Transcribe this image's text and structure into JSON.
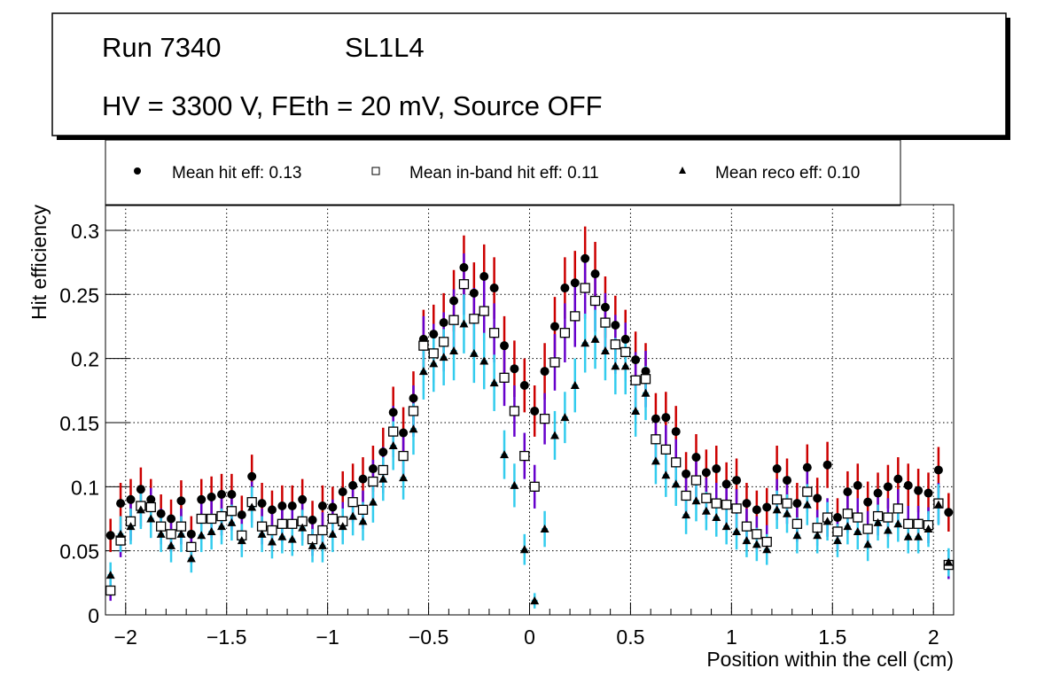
{
  "title_box": {
    "run": "Run 7340",
    "layer": "SL1L4",
    "conditions": "HV = 3300 V, FEth = 20 mV, Source OFF"
  },
  "legend": [
    {
      "marker": "filled-circle",
      "label": "Mean hit  eff: 0.13"
    },
    {
      "marker": "open-square",
      "label": "Mean in-band hit eff: 0.11"
    },
    {
      "marker": "filled-triangle",
      "label": "Mean reco eff: 0.10"
    }
  ],
  "chart_data": {
    "type": "scatter",
    "title": "Run 7340 SL1L4 — HV = 3300 V, FEth = 20 mV, Source OFF",
    "xlabel": "Position within the cell (cm)",
    "ylabel": "Hit efficiency",
    "xlim": [
      -2.1,
      2.1
    ],
    "ylim": [
      0,
      0.32
    ],
    "xticks": [
      -2,
      -1.5,
      -1,
      -0.5,
      0,
      0.5,
      1,
      1.5,
      2
    ],
    "xtick_labels": [
      "−2",
      "−1.5",
      "−1",
      "−0.5",
      "0",
      "0.5",
      "1",
      "1.5",
      "2"
    ],
    "yticks": [
      0,
      0.05,
      0.1,
      0.15,
      0.2,
      0.25,
      0.3
    ],
    "ytick_labels": [
      "0",
      "0.05",
      "0.1",
      "0.15",
      "0.2",
      "0.25",
      "0.3"
    ],
    "grid": true,
    "legend_position": "top",
    "bin_width": 0.05,
    "x_start": -2.075,
    "series": [
      {
        "name": "Mean hit  eff: 0.13",
        "marker": "filled-circle",
        "error_color": "#cc0000",
        "values": [
          0.062,
          0.087,
          0.09,
          0.098,
          0.09,
          0.079,
          0.075,
          0.089,
          0.063,
          0.09,
          0.092,
          0.094,
          0.094,
          0.078,
          0.108,
          0.087,
          0.082,
          0.085,
          0.085,
          0.09,
          0.074,
          0.085,
          0.084,
          0.096,
          0.101,
          0.106,
          0.114,
          0.127,
          0.158,
          0.142,
          0.169,
          0.215,
          0.219,
          0.228,
          0.245,
          0.271,
          0.251,
          0.264,
          0.255,
          0.21,
          0.192,
          0.179,
          0.159,
          0.19,
          0.225,
          0.255,
          0.259,
          0.278,
          0.266,
          0.24,
          0.226,
          0.215,
          0.199,
          0.19,
          0.153,
          0.154,
          0.143,
          0.11,
          0.123,
          0.111,
          0.114,
          0.102,
          0.105,
          0.087,
          0.082,
          0.084,
          0.114,
          0.105,
          0.087,
          0.115,
          0.091,
          0.117,
          0.076,
          0.096,
          0.101,
          0.088,
          0.095,
          0.1,
          0.106,
          0.101,
          0.097,
          0.095,
          0.113,
          0.08
        ],
        "errors": [
          0.013,
          0.016,
          0.016,
          0.017,
          0.016,
          0.015,
          0.015,
          0.016,
          0.014,
          0.016,
          0.016,
          0.016,
          0.016,
          0.015,
          0.017,
          0.016,
          0.015,
          0.016,
          0.016,
          0.016,
          0.015,
          0.016,
          0.016,
          0.016,
          0.017,
          0.017,
          0.018,
          0.019,
          0.02,
          0.02,
          0.021,
          0.023,
          0.023,
          0.023,
          0.024,
          0.025,
          0.024,
          0.025,
          0.024,
          0.023,
          0.022,
          0.021,
          0.02,
          0.022,
          0.023,
          0.024,
          0.025,
          0.025,
          0.025,
          0.024,
          0.023,
          0.023,
          0.022,
          0.022,
          0.02,
          0.02,
          0.02,
          0.017,
          0.018,
          0.018,
          0.018,
          0.017,
          0.017,
          0.016,
          0.015,
          0.015,
          0.018,
          0.017,
          0.016,
          0.018,
          0.016,
          0.018,
          0.015,
          0.016,
          0.017,
          0.016,
          0.016,
          0.017,
          0.017,
          0.017,
          0.017,
          0.016,
          0.018,
          0.015
        ]
      },
      {
        "name": "Mean in-band hit eff: 0.11",
        "marker": "open-square",
        "error_color": "#6600cc",
        "values": [
          0.019,
          0.058,
          0.073,
          0.085,
          0.084,
          0.069,
          0.063,
          0.069,
          0.053,
          0.075,
          0.075,
          0.077,
          0.081,
          0.062,
          0.088,
          0.069,
          0.066,
          0.071,
          0.071,
          0.073,
          0.059,
          0.066,
          0.075,
          0.073,
          0.088,
          0.082,
          0.104,
          0.113,
          0.143,
          0.124,
          0.159,
          0.21,
          0.204,
          0.213,
          0.23,
          0.258,
          0.231,
          0.237,
          0.22,
          0.185,
          0.159,
          0.124,
          0.1,
          0.153,
          0.197,
          0.22,
          0.233,
          0.255,
          0.245,
          0.228,
          0.211,
          0.205,
          0.183,
          0.184,
          0.137,
          0.129,
          0.119,
          0.093,
          0.105,
          0.091,
          0.087,
          0.086,
          0.083,
          0.069,
          0.063,
          0.057,
          0.09,
          0.087,
          0.071,
          0.096,
          0.068,
          0.076,
          0.065,
          0.079,
          0.076,
          0.067,
          0.077,
          0.076,
          0.083,
          0.071,
          0.071,
          0.07,
          0.087,
          0.039
        ],
        "errors": [
          0.008,
          0.013,
          0.015,
          0.016,
          0.015,
          0.014,
          0.014,
          0.014,
          0.013,
          0.015,
          0.015,
          0.015,
          0.015,
          0.013,
          0.016,
          0.014,
          0.014,
          0.014,
          0.014,
          0.015,
          0.013,
          0.014,
          0.015,
          0.015,
          0.016,
          0.015,
          0.017,
          0.018,
          0.02,
          0.018,
          0.02,
          0.023,
          0.023,
          0.023,
          0.024,
          0.024,
          0.024,
          0.024,
          0.023,
          0.022,
          0.02,
          0.018,
          0.017,
          0.02,
          0.022,
          0.023,
          0.024,
          0.024,
          0.024,
          0.023,
          0.023,
          0.023,
          0.022,
          0.022,
          0.019,
          0.019,
          0.018,
          0.016,
          0.017,
          0.016,
          0.016,
          0.016,
          0.015,
          0.014,
          0.014,
          0.013,
          0.016,
          0.016,
          0.014,
          0.016,
          0.014,
          0.015,
          0.014,
          0.015,
          0.015,
          0.014,
          0.015,
          0.015,
          0.015,
          0.014,
          0.014,
          0.014,
          0.016,
          0.011
        ]
      },
      {
        "name": "Mean reco eff: 0.10",
        "marker": "filled-triangle",
        "error_color": "#33ccee",
        "values": [
          0.031,
          0.063,
          0.069,
          0.082,
          0.075,
          0.063,
          0.054,
          0.063,
          0.044,
          0.062,
          0.065,
          0.069,
          0.072,
          0.058,
          0.084,
          0.063,
          0.057,
          0.061,
          0.059,
          0.068,
          0.054,
          0.054,
          0.063,
          0.069,
          0.077,
          0.073,
          0.088,
          0.106,
          0.132,
          0.107,
          0.145,
          0.19,
          0.196,
          0.201,
          0.206,
          0.227,
          0.204,
          0.198,
          0.181,
          0.125,
          0.101,
          0.051,
          0.011,
          0.067,
          0.14,
          0.154,
          0.179,
          0.212,
          0.215,
          0.206,
          0.194,
          0.194,
          0.159,
          0.173,
          0.12,
          0.109,
          0.102,
          0.078,
          0.089,
          0.081,
          0.076,
          0.069,
          0.065,
          0.058,
          0.055,
          0.051,
          0.082,
          0.079,
          0.062,
          0.086,
          0.062,
          0.073,
          0.058,
          0.069,
          0.065,
          0.055,
          0.072,
          0.066,
          0.071,
          0.061,
          0.061,
          0.067,
          0.086,
          0.041
        ],
        "errors": [
          0.01,
          0.014,
          0.014,
          0.015,
          0.015,
          0.014,
          0.013,
          0.014,
          0.011,
          0.013,
          0.014,
          0.014,
          0.014,
          0.013,
          0.016,
          0.014,
          0.013,
          0.013,
          0.013,
          0.014,
          0.013,
          0.013,
          0.014,
          0.014,
          0.015,
          0.015,
          0.016,
          0.017,
          0.019,
          0.017,
          0.02,
          0.022,
          0.022,
          0.022,
          0.023,
          0.023,
          0.023,
          0.022,
          0.022,
          0.019,
          0.017,
          0.012,
          0.006,
          0.014,
          0.019,
          0.02,
          0.021,
          0.023,
          0.023,
          0.023,
          0.022,
          0.022,
          0.02,
          0.021,
          0.018,
          0.017,
          0.017,
          0.015,
          0.016,
          0.015,
          0.015,
          0.014,
          0.014,
          0.013,
          0.013,
          0.012,
          0.015,
          0.015,
          0.014,
          0.016,
          0.014,
          0.015,
          0.013,
          0.014,
          0.014,
          0.013,
          0.014,
          0.014,
          0.014,
          0.013,
          0.013,
          0.014,
          0.016,
          0.011
        ]
      }
    ]
  }
}
